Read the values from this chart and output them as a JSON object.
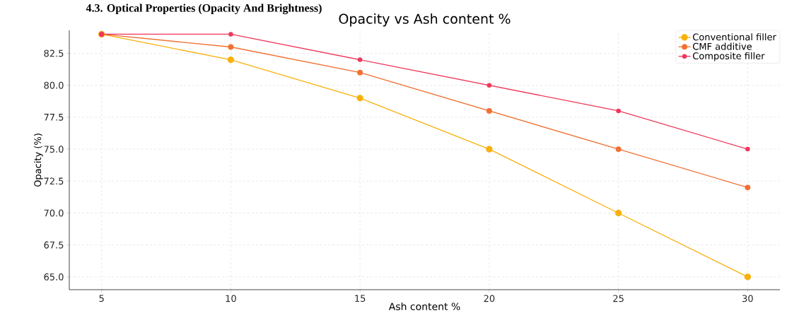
{
  "chart_data": {
    "type": "line",
    "title": "Opacity vs Ash content %",
    "xlabel": "Ash content %",
    "ylabel": "Opacity (%)",
    "annotations": [
      "4.3. Optical Properties (Opacity And Brightness)"
    ],
    "x": [
      5,
      10,
      15,
      20,
      25,
      30
    ],
    "series": [
      {
        "name": "Conventional filler",
        "color": "#f8b00c",
        "values": [
          84,
          82,
          79,
          75,
          70,
          65
        ]
      },
      {
        "name": "CMF additive",
        "color": "#f07032",
        "values": [
          84,
          83,
          81,
          78,
          75,
          72
        ]
      },
      {
        "name": "Composite filler",
        "color": "#f0365a",
        "values": [
          84,
          84,
          82,
          80,
          78,
          75
        ]
      }
    ],
    "xlim": [
      3.75,
      31.25
    ],
    "ylim": [
      64.0,
      84.3
    ],
    "xticks": [
      5,
      10,
      15,
      20,
      25,
      30
    ],
    "yticks": [
      {
        "value": 65,
        "label": "65.0"
      },
      {
        "value": 67.5,
        "label": "67.5"
      },
      {
        "value": 70,
        "label": "70.0"
      },
      {
        "value": 72.5,
        "label": "72.5"
      },
      {
        "value": 75,
        "label": "75.0"
      },
      {
        "value": 77.5,
        "label": "77.5"
      },
      {
        "value": 80,
        "label": "80.0"
      },
      {
        "value": 82.5,
        "label": "82.5"
      }
    ],
    "grid": true,
    "legend": "top right",
    "marker": "circle",
    "line_style": "solid"
  }
}
